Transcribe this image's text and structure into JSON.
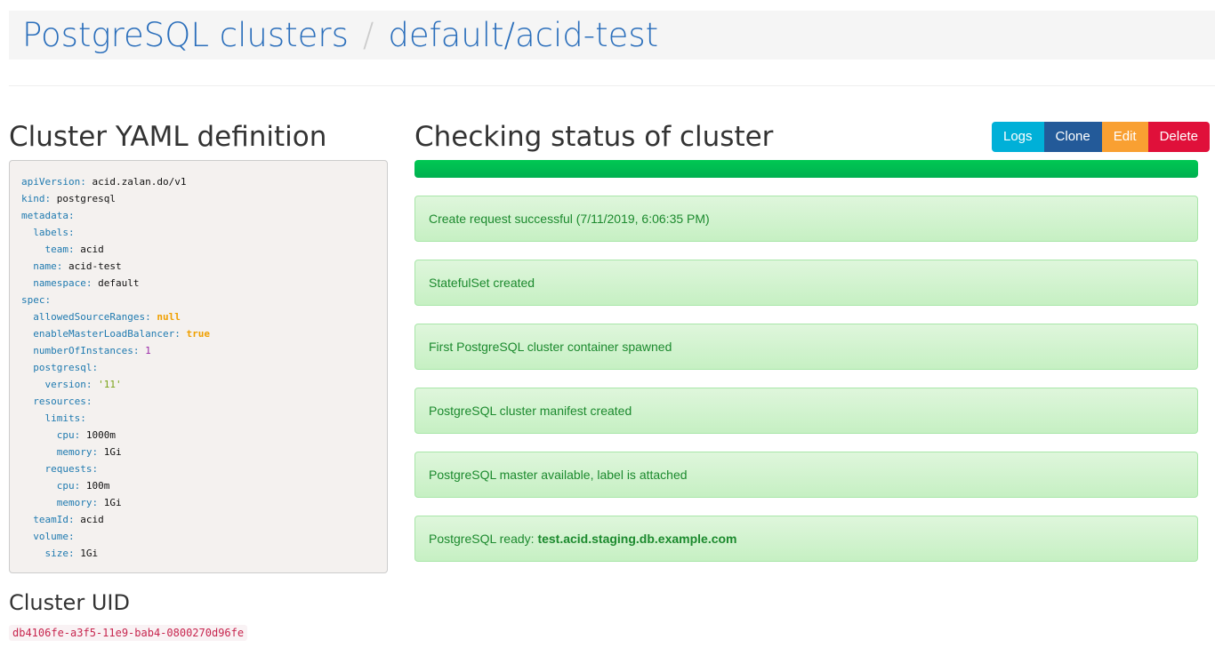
{
  "breadcrumb": {
    "root": "PostgreSQL clusters",
    "separator": "/",
    "current": "default/acid-test"
  },
  "yaml_title": "Cluster YAML definition",
  "yaml_lines": [
    {
      "i": 0,
      "k": "apiVersion",
      "v": "acid.zalan.do/v1",
      "t": "v"
    },
    {
      "i": 0,
      "k": "kind",
      "v": "postgresql",
      "t": "v"
    },
    {
      "i": 0,
      "k": "metadata",
      "v": "",
      "t": "v"
    },
    {
      "i": 1,
      "k": "labels",
      "v": "",
      "t": "v"
    },
    {
      "i": 2,
      "k": "team",
      "v": "acid",
      "t": "v"
    },
    {
      "i": 1,
      "k": "name",
      "v": "acid-test",
      "t": "v"
    },
    {
      "i": 1,
      "k": "namespace",
      "v": "default",
      "t": "v"
    },
    {
      "i": 0,
      "k": "spec",
      "v": "",
      "t": "v"
    },
    {
      "i": 1,
      "k": "allowedSourceRanges",
      "v": "null",
      "t": "b"
    },
    {
      "i": 1,
      "k": "enableMasterLoadBalancer",
      "v": "true",
      "t": "b"
    },
    {
      "i": 1,
      "k": "numberOfInstances",
      "v": "1",
      "t": "n"
    },
    {
      "i": 1,
      "k": "postgresql",
      "v": "",
      "t": "v"
    },
    {
      "i": 2,
      "k": "version",
      "v": "'11'",
      "t": "s"
    },
    {
      "i": 1,
      "k": "resources",
      "v": "",
      "t": "v"
    },
    {
      "i": 2,
      "k": "limits",
      "v": "",
      "t": "v"
    },
    {
      "i": 3,
      "k": "cpu",
      "v": "1000m",
      "t": "v"
    },
    {
      "i": 3,
      "k": "memory",
      "v": "1Gi",
      "t": "v"
    },
    {
      "i": 2,
      "k": "requests",
      "v": "",
      "t": "v"
    },
    {
      "i": 3,
      "k": "cpu",
      "v": "100m",
      "t": "v"
    },
    {
      "i": 3,
      "k": "memory",
      "v": "1Gi",
      "t": "v"
    },
    {
      "i": 1,
      "k": "teamId",
      "v": "acid",
      "t": "v"
    },
    {
      "i": 1,
      "k": "volume",
      "v": "",
      "t": "v"
    },
    {
      "i": 2,
      "k": "size",
      "v": "1Gi",
      "t": "v"
    }
  ],
  "uid_title": "Cluster UID",
  "uid": "db4106fe-a3f5-11e9-bab4-0800270d96fe",
  "status_title": "Checking status of cluster",
  "progress_percent": 100,
  "buttons": [
    {
      "label": "Logs",
      "color": "#00b0d8"
    },
    {
      "label": "Clone",
      "color": "#235a99"
    },
    {
      "label": "Edit",
      "color": "#f9a032"
    },
    {
      "label": "Delete",
      "color": "#e0103a"
    }
  ],
  "steps": [
    {
      "text": "Create request successful (7/11/2019, 6:06:35 PM)",
      "bold": ""
    },
    {
      "text": "StatefulSet created",
      "bold": ""
    },
    {
      "text": "First PostgreSQL cluster container spawned",
      "bold": ""
    },
    {
      "text": "PostgreSQL cluster manifest created",
      "bold": ""
    },
    {
      "text": "PostgreSQL master available, label is attached",
      "bold": ""
    },
    {
      "text": "PostgreSQL ready: ",
      "bold": "test.acid.staging.db.example.com"
    }
  ]
}
